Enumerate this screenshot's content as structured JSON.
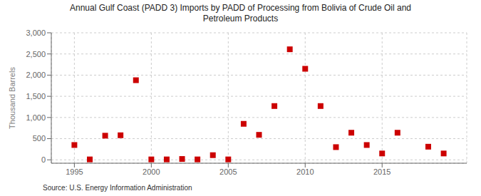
{
  "chart_data": {
    "type": "scatter",
    "title": "Annual Gulf Coast (PADD 3) Imports by PADD of Processing from Bolivia of Crude Oil and\nPetroleum Products",
    "ylabel": "Thousand Barrels",
    "source": "Source: U.S. Energy Information Administration",
    "x": [
      1995,
      1996,
      1997,
      1998,
      1999,
      2000,
      2001,
      2002,
      2003,
      2004,
      2005,
      2006,
      2007,
      2008,
      2009,
      2010,
      2011,
      2012,
      2013,
      2014,
      2015,
      2016,
      2018,
      2019
    ],
    "values": [
      350,
      10,
      570,
      580,
      1880,
      10,
      10,
      20,
      10,
      110,
      10,
      850,
      590,
      1270,
      2610,
      2150,
      1270,
      300,
      640,
      350,
      150,
      640,
      310,
      150
    ],
    "color": "#cc0000",
    "marker": "square",
    "xlim": [
      1993.5,
      2020.5
    ],
    "ylim": [
      -80,
      3000
    ],
    "xticks": [
      1995,
      2000,
      2005,
      2010,
      2015
    ],
    "yticks": [
      0,
      500,
      {
        "value": 1000,
        "label": "1,000"
      },
      {
        "value": 1500,
        "label": "1,500"
      },
      {
        "value": 2000,
        "label": "2,000"
      },
      {
        "value": 2500,
        "label": "2,500"
      },
      {
        "value": 3000,
        "label": "3,000"
      }
    ],
    "grid": true
  }
}
